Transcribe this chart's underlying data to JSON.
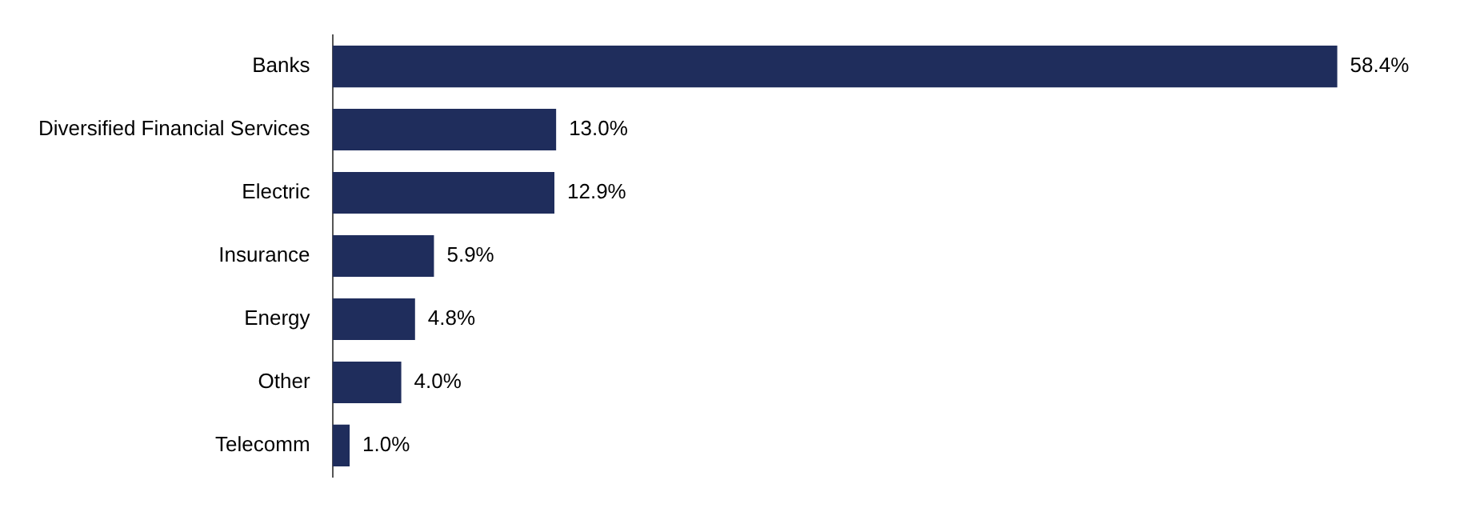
{
  "chart_data": {
    "type": "bar",
    "orientation": "horizontal",
    "categories": [
      "Banks",
      "Diversified Financial Services",
      "Electric",
      "Insurance",
      "Energy",
      "Other",
      "Telecomm"
    ],
    "values": [
      58.4,
      13.0,
      12.9,
      5.9,
      4.8,
      4.0,
      1.0
    ],
    "value_labels": [
      "58.4%",
      "13.0%",
      "12.9%",
      "5.9%",
      "4.8%",
      "4.0%",
      "1.0%"
    ],
    "color": "#1f2d5c",
    "tick_labels": "y",
    "grid": false,
    "legend": false
  }
}
